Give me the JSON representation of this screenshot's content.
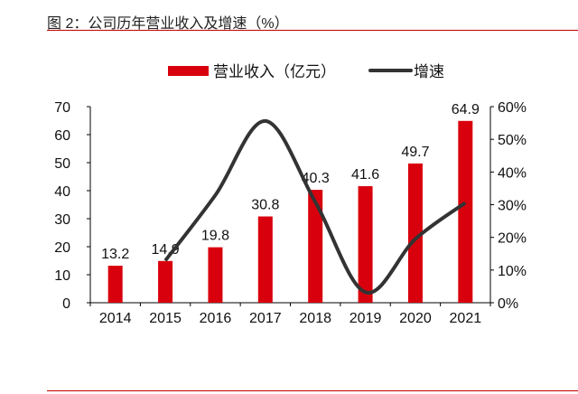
{
  "title": "图 2：公司历年营业收入及增速（%）",
  "chart_data": {
    "type": "bar+line",
    "categories": [
      "2014",
      "2015",
      "2016",
      "2017",
      "2018",
      "2019",
      "2020",
      "2021"
    ],
    "series": [
      {
        "name": "营业收入（亿元）",
        "type": "bar",
        "axis": "left",
        "color": "#d9000d",
        "values": [
          13.2,
          14.9,
          19.8,
          30.8,
          40.3,
          41.6,
          49.7,
          64.9
        ],
        "labels": [
          "13.2",
          "14.9",
          "19.8",
          "30.8",
          "40.3",
          "41.6",
          "49.7",
          "64.9"
        ]
      },
      {
        "name": "增速",
        "type": "line",
        "axis": "right",
        "color": "#333333",
        "values": [
          null,
          12.9,
          32.9,
          55.6,
          30.8,
          3.2,
          19.5,
          30.6
        ]
      }
    ],
    "left_axis": {
      "ylim": [
        0,
        70
      ],
      "ticks": [
        "0",
        "10",
        "20",
        "30",
        "40",
        "50",
        "60",
        "70"
      ]
    },
    "right_axis": {
      "ylim": [
        0,
        60
      ],
      "ticks": [
        "0%",
        "10%",
        "20%",
        "30%",
        "40%",
        "50%",
        "60%"
      ]
    },
    "legend": {
      "placement": "top-center",
      "items": [
        "营业收入（亿元）",
        "增速"
      ]
    }
  }
}
